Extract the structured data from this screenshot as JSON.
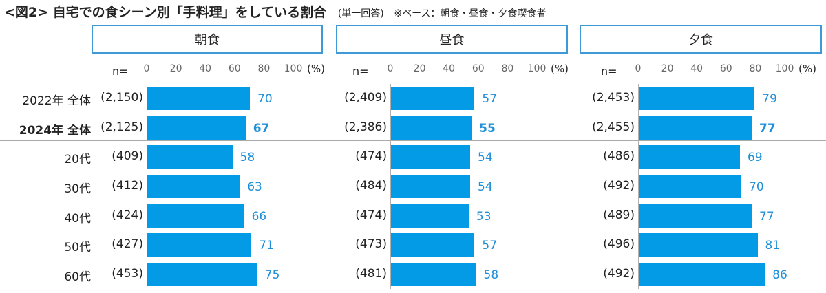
{
  "title": {
    "main": "<図2> 自宅での食シーン別「手料理」をしている割合",
    "sub": "(単一回答)",
    "note": "※ベース：朝食・昼食・夕食喫食者"
  },
  "n_label": "n=",
  "percent_label": "(%)",
  "accent_color": "#039be5",
  "value_color": "#1e8fd8",
  "chart_data": {
    "type": "bar",
    "orientation": "horizontal",
    "xlim": [
      0,
      100
    ],
    "ticks": [
      "0",
      "20",
      "40",
      "60",
      "80",
      "100"
    ],
    "rows": [
      {
        "label": "2022年 全体",
        "bold": false
      },
      {
        "label": "2024年 全体",
        "bold": true
      },
      {
        "label": "20代",
        "bold": false
      },
      {
        "label": "30代",
        "bold": false
      },
      {
        "label": "40代",
        "bold": false
      },
      {
        "label": "50代",
        "bold": false
      },
      {
        "label": "60代",
        "bold": false
      }
    ],
    "panels": [
      {
        "name": "朝食",
        "n": [
          "(2,150)",
          "(2,125)",
          "(409)",
          "(412)",
          "(424)",
          "(427)",
          "(453)"
        ],
        "values": [
          70,
          67,
          58,
          63,
          66,
          71,
          75
        ]
      },
      {
        "name": "昼食",
        "n": [
          "(2,409)",
          "(2,386)",
          "(474)",
          "(484)",
          "(474)",
          "(473)",
          "(481)"
        ],
        "values": [
          57,
          55,
          54,
          54,
          53,
          57,
          58
        ]
      },
      {
        "name": "夕食",
        "n": [
          "(2,453)",
          "(2,455)",
          "(486)",
          "(492)",
          "(489)",
          "(496)",
          "(492)"
        ],
        "values": [
          79,
          77,
          69,
          70,
          77,
          81,
          86
        ]
      }
    ]
  }
}
